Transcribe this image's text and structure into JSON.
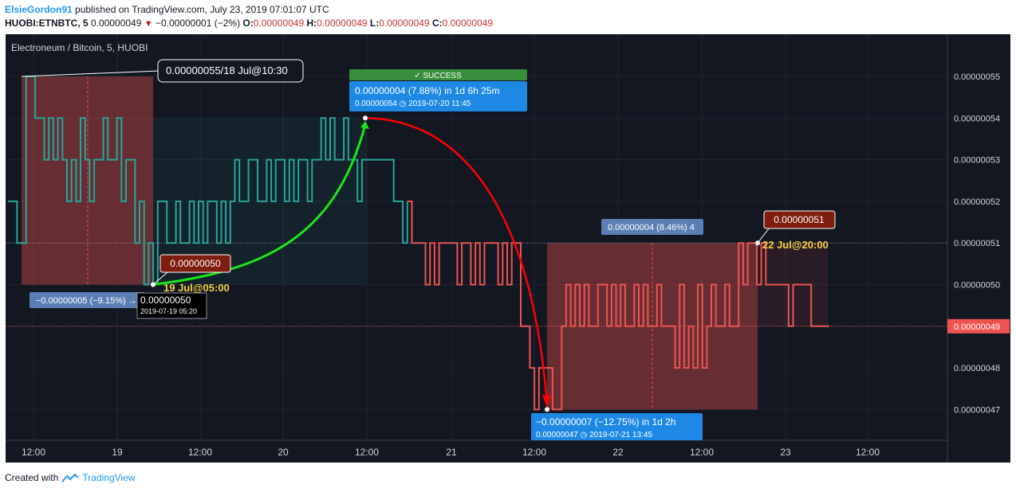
{
  "header": {
    "author": "ElsieGordon91",
    "published": " published on TradingView.com, July 23, 2019 07:01:07 UTC",
    "symbol": "HUOBI:ETNBTC, 5",
    "price": " 0.00000049 ",
    "change": " −0.00000001 (−2%) ",
    "o_label": "O:",
    "o_val": "0.00000049",
    "h_label": " H:",
    "h_val": "0.00000049",
    "l_label": " L:",
    "l_val": "0.00000049",
    "c_label": " C:",
    "c_val": "0.00000049"
  },
  "footer": {
    "created": "Created with",
    "brand": "TradingView"
  },
  "colors": {
    "background": "#131722",
    "up": "#26a69a",
    "down": "#ef5350",
    "arrow_up": "#19e619",
    "arrow_down": "#ff0000",
    "success": "#388e3c",
    "blue_label": "#1e88e5",
    "dark_red_label": "#7f1d0f"
  },
  "chart_data": {
    "type": "line",
    "title": "Electroneum / Bitcoin, 5, HUOBI",
    "y_ticks": [
      "0.00000055",
      "0.00000054",
      "0.00000053",
      "0.00000052",
      "0.00000051",
      "0.00000050",
      "0.00000049",
      "0.00000048",
      "0.00000047"
    ],
    "ylim": [
      4.62e-07,
      5.58e-07
    ],
    "x_ticks": [
      "12:00",
      "19",
      "12:00",
      "20",
      "12:00",
      "21",
      "12:00",
      "22",
      "12:00",
      "23",
      "12:00"
    ],
    "last_price_label": "0.00000049",
    "series": [
      {
        "values": [
          52,
          52,
          51,
          51,
          55,
          55,
          54,
          54,
          53,
          54,
          53,
          54,
          53,
          52,
          53,
          52,
          54,
          53,
          52,
          53,
          53,
          54,
          53,
          53,
          54,
          52,
          53,
          53,
          51,
          52,
          50,
          51,
          50,
          52,
          52,
          51,
          51,
          52,
          51,
          51,
          52,
          51,
          52,
          51,
          52,
          52,
          51,
          52,
          51,
          52,
          53,
          52,
          52,
          53,
          53,
          52,
          52,
          53,
          52,
          53,
          53,
          52,
          53,
          52,
          53,
          53,
          52,
          53,
          53,
          54,
          53,
          54,
          53,
          53,
          54,
          53,
          53,
          52,
          53,
          53,
          53,
          53,
          53,
          53,
          53,
          52,
          52,
          51,
          52,
          51,
          51,
          51,
          50,
          51,
          50,
          51,
          51,
          51,
          51,
          50,
          51,
          51,
          50,
          51,
          50,
          51,
          51,
          51,
          50,
          51,
          50,
          51,
          51,
          49,
          49,
          48,
          47,
          48,
          48,
          48,
          47,
          47,
          49,
          50,
          49,
          50,
          49,
          50,
          49,
          49,
          50,
          50,
          49,
          50,
          49,
          50,
          49,
          49,
          50,
          49,
          50,
          49,
          49,
          50,
          49,
          49,
          49,
          48,
          50,
          48,
          49,
          48,
          50,
          48,
          49,
          50,
          49,
          49,
          50,
          49,
          49,
          51,
          50,
          51,
          51,
          50,
          51,
          50,
          50,
          50,
          50,
          50,
          49,
          50,
          50,
          50,
          50,
          49,
          49,
          49,
          49,
          49
        ]
      }
    ],
    "annotations": {
      "top_callout": "0.00000055/18 Jul@10:30",
      "success_badge": "SUCCESS",
      "up_box_line1": "0.00000004 (7.88%) in 1d 6h 25m",
      "up_box_line2": "0.00000054",
      "up_box_date": "2019-07-20  11:45",
      "low_label": "0.00000050",
      "low_date": "19 Jul@05:00",
      "range1_label": "−0.00000005 (−9.15%) →",
      "tooltip_price": "0.00000050",
      "tooltip_date": "2019-07-19 05:20",
      "range2_label": "0.00000004 (8.46%) 4",
      "right_label": "0.00000051",
      "right_date": "22 Jul@20:00",
      "down_box_line1": "−0.00000007 (−12.75%) in 1d 2h",
      "down_box_line2": "0.00000047",
      "down_box_date": "2019-07-21  13:45"
    }
  }
}
